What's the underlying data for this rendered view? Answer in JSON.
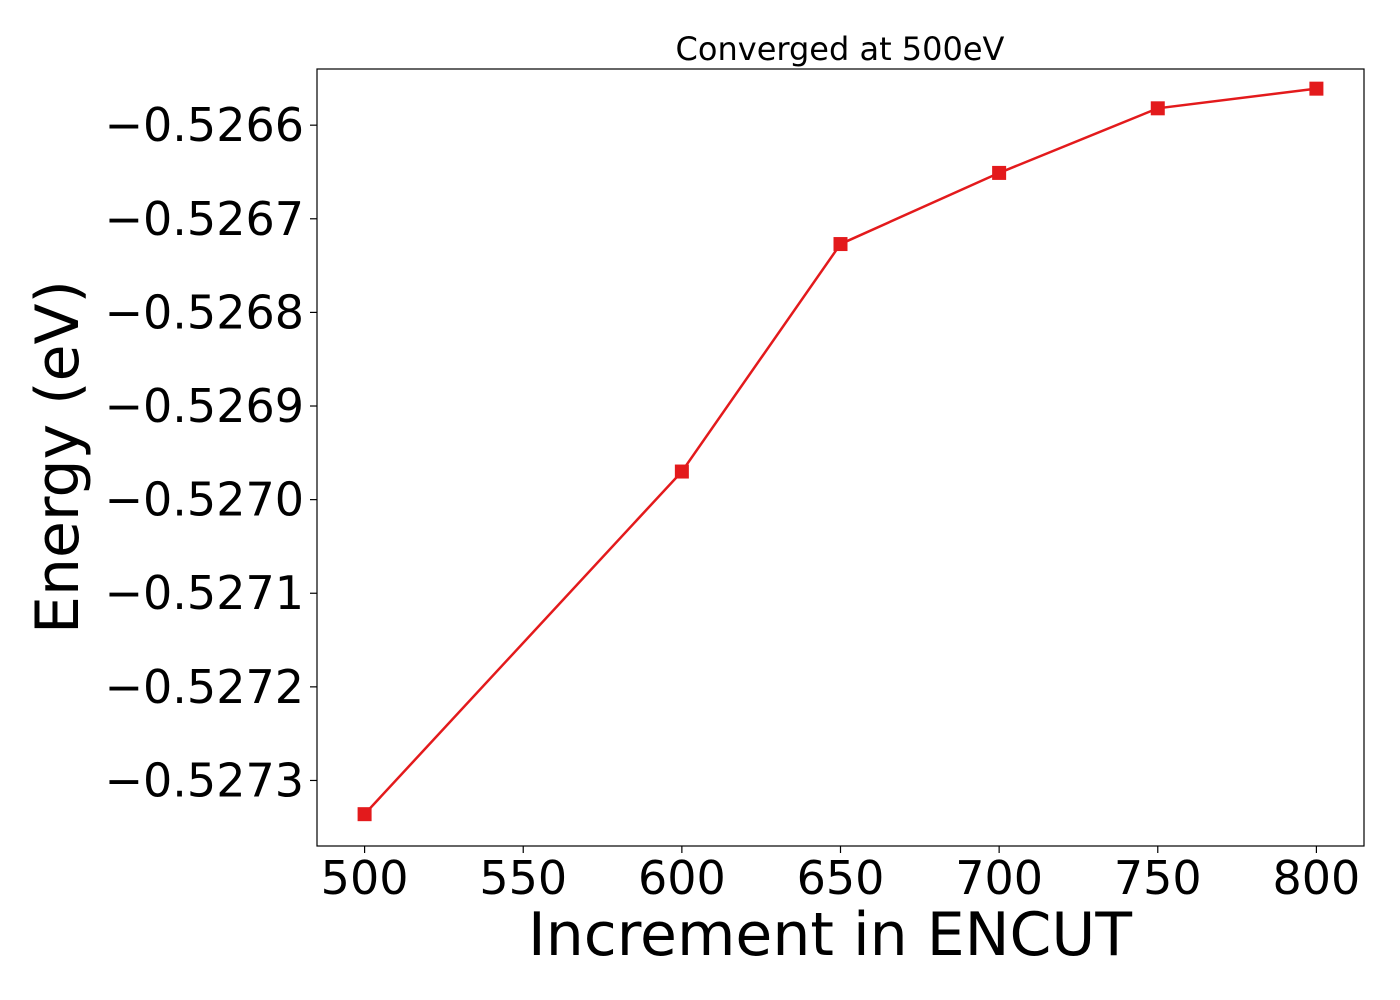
{
  "chart_data": {
    "type": "line",
    "title": "Converged at 500eV",
    "xlabel": "Increment in ENCUT",
    "ylabel": "Energy (eV)",
    "x": [
      500,
      600,
      650,
      700,
      750,
      800
    ],
    "series": [
      {
        "values": [
          -0.527336,
          -0.52697,
          -0.526727,
          -0.526651,
          -0.526582,
          -0.526561
        ],
        "color": "#e31a1c",
        "marker": "square"
      }
    ],
    "xlim": [
      485,
      815
    ],
    "ylim": [
      -0.52737,
      -0.52654
    ],
    "xticks": [
      500,
      550,
      600,
      650,
      700,
      750,
      800
    ],
    "xtick_labels": [
      "500",
      "550",
      "600",
      "650",
      "700",
      "750",
      "800"
    ],
    "yticks": [
      -0.5273,
      -0.5272,
      -0.5271,
      -0.527,
      -0.5269,
      -0.5268,
      -0.5267,
      -0.5266
    ],
    "ytick_labels": [
      "−0.5273",
      "−0.5272",
      "−0.5271",
      "−0.5270",
      "−0.5269",
      "−0.5268",
      "−0.5267",
      "−0.5266"
    ],
    "grid": false,
    "legend": false
  }
}
